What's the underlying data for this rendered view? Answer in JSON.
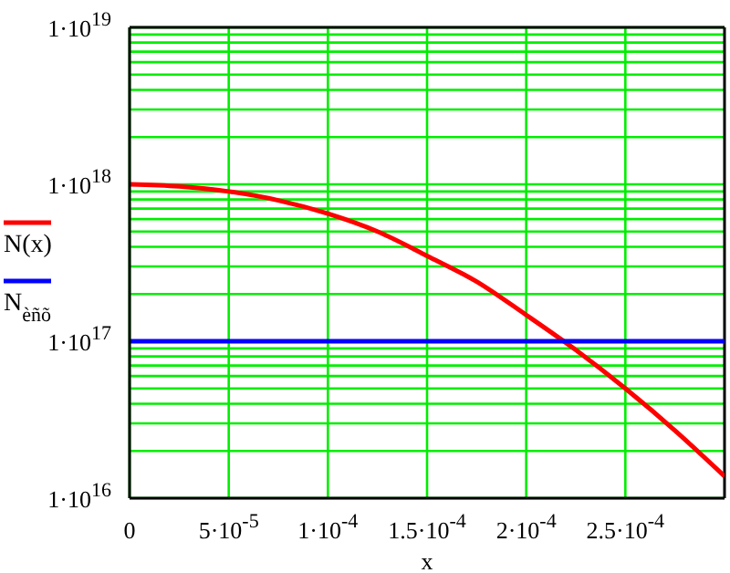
{
  "chart_data": {
    "type": "line",
    "xlabel": "x",
    "legend": "left",
    "grid": true,
    "log": "y",
    "marker": "none",
    "line_style": "solid",
    "xlim": [
      0,
      0.0003
    ],
    "xticks": [
      0,
      {
        "value": 5e-05,
        "label": "5·10$^{-5}$"
      },
      {
        "value": 0.0001,
        "label": "1·10$^{-4}$"
      },
      {
        "value": 0.00015,
        "label": "1.5·10$^{-4}$"
      },
      {
        "value": 0.0002,
        "label": "2·10$^{-4}$"
      },
      {
        "value": 0.00025,
        "label": "2.5·10$^{-4}$"
      }
    ],
    "ylim": [
      1e+16,
      1e+19
    ],
    "yticks": [
      {
        "value": 1e+16,
        "label": "1·10$^{16}$"
      },
      {
        "value": 2e+16,
        "label": null
      },
      {
        "value": 3e+16,
        "label": null
      },
      {
        "value": 4e+16,
        "label": null
      },
      {
        "value": 5e+16,
        "label": null
      },
      {
        "value": 6e+16,
        "label": null
      },
      {
        "value": 7e+16,
        "label": null
      },
      {
        "value": 8e+16,
        "label": null
      },
      {
        "value": 9e+16,
        "label": null
      },
      {
        "value": 1e+17,
        "label": "1·10$^{17}$"
      },
      {
        "value": 2e+17,
        "label": null
      },
      {
        "value": 3e+17,
        "label": null
      },
      {
        "value": 4e+17,
        "label": null
      },
      {
        "value": 5e+17,
        "label": null
      },
      {
        "value": 6e+17,
        "label": null
      },
      {
        "value": 7e+17,
        "label": null
      },
      {
        "value": 8e+17,
        "label": null
      },
      {
        "value": 9e+17,
        "label": null
      },
      {
        "value": 1e+18,
        "label": "1·10$^{18}$"
      },
      {
        "value": 2e+18,
        "label": null
      },
      {
        "value": 3e+18,
        "label": null
      },
      {
        "value": 4e+18,
        "label": null
      },
      {
        "value": 5e+18,
        "label": null
      },
      {
        "value": 6e+18,
        "label": null
      },
      {
        "value": 7e+18,
        "label": null
      },
      {
        "value": 8e+18,
        "label": null
      },
      {
        "value": 9e+18,
        "label": null
      },
      {
        "value": 1e+19,
        "label": "1·10$^{19}$"
      }
    ],
    "series": [
      {
        "name": "N(x)",
        "color": "#ff0000",
        "x": [
          0,
          2.5e-05,
          5e-05,
          7.5e-05,
          0.0001,
          0.000125,
          0.00015,
          0.000175,
          0.0002,
          0.000225,
          0.00025,
          0.000275,
          0.0003
        ],
        "values": [
          1e+18,
          9.7e+17,
          9e+17,
          7.9e+17,
          6.5e+17,
          5e+17,
          3.5e+17,
          2.4e+17,
          1.47e+17,
          8.8e+16,
          5e+16,
          2.7e+16,
          1.38e+16
        ]
      },
      {
        "name": "N$_{èñõ}$",
        "color": "#0000ff",
        "x": [
          0,
          0.0003
        ],
        "values": [
          1e+17,
          1e+17
        ]
      }
    ]
  }
}
